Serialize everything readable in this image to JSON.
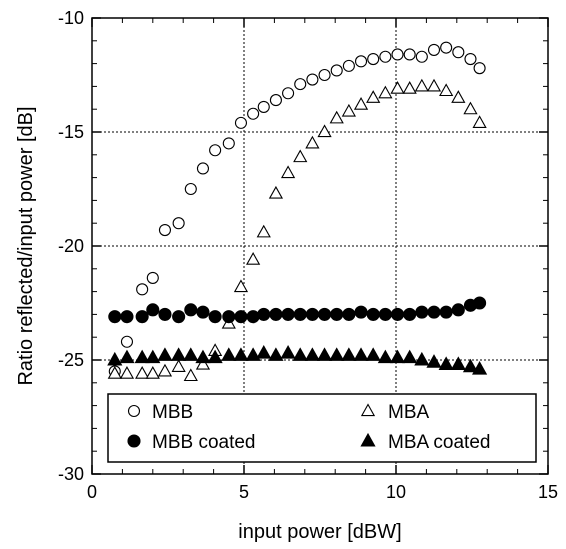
{
  "chart_data": {
    "type": "scatter",
    "xlabel": "input power [dBW]",
    "ylabel": "Ratio reflected/input power [dB]",
    "xlim": [
      0,
      15
    ],
    "ylim": [
      -30,
      -10
    ],
    "xticks": [
      "0",
      "5",
      "10",
      "15"
    ],
    "yticks": [
      "-30",
      "-25",
      "-20",
      "-15",
      "-10"
    ],
    "grid": "dotted, major ticks only",
    "legend_position": "bottom-center",
    "series": [
      {
        "name": "MBB",
        "marker": "open-circle",
        "x": [
          0.75,
          1.15,
          1.65,
          2.0,
          2.4,
          2.85,
          3.25,
          3.65,
          4.05,
          4.5,
          4.9,
          5.3,
          5.65,
          6.05,
          6.45,
          6.85,
          7.25,
          7.65,
          8.05,
          8.45,
          8.85,
          9.25,
          9.65,
          10.05,
          10.45,
          10.85,
          11.25,
          11.65,
          12.05,
          12.45,
          12.75
        ],
        "y": [
          -25.5,
          -24.2,
          -21.9,
          -21.4,
          -19.3,
          -19.0,
          -17.5,
          -16.6,
          -15.8,
          -15.5,
          -14.6,
          -14.2,
          -13.9,
          -13.6,
          -13.3,
          -12.9,
          -12.7,
          -12.5,
          -12.3,
          -12.1,
          -11.9,
          -11.8,
          -11.7,
          -11.6,
          -11.6,
          -11.7,
          -11.4,
          -11.3,
          -11.5,
          -11.8,
          -12.2
        ]
      },
      {
        "name": "MBA",
        "marker": "open-triangle",
        "x": [
          0.75,
          1.15,
          1.65,
          2.0,
          2.4,
          2.85,
          3.25,
          3.65,
          4.05,
          4.5,
          4.9,
          5.3,
          5.65,
          6.05,
          6.45,
          6.85,
          7.25,
          7.65,
          8.05,
          8.45,
          8.85,
          9.25,
          9.65,
          10.05,
          10.45,
          10.85,
          11.25,
          11.65,
          12.05,
          12.45,
          12.75
        ],
        "y": [
          -25.6,
          -25.6,
          -25.6,
          -25.6,
          -25.5,
          -25.3,
          -25.7,
          -25.2,
          -24.6,
          -23.4,
          -21.8,
          -20.6,
          -19.4,
          -17.7,
          -16.8,
          -16.1,
          -15.5,
          -15.0,
          -14.4,
          -14.1,
          -13.8,
          -13.5,
          -13.3,
          -13.1,
          -13.1,
          -13.0,
          -13.0,
          -13.2,
          -13.5,
          -14.0,
          -14.6
        ]
      },
      {
        "name": "MBB coated",
        "marker": "filled-circle",
        "x": [
          0.75,
          1.15,
          1.65,
          2.0,
          2.4,
          2.85,
          3.25,
          3.65,
          4.05,
          4.5,
          4.9,
          5.3,
          5.65,
          6.05,
          6.45,
          6.85,
          7.25,
          7.65,
          8.05,
          8.45,
          8.85,
          9.25,
          9.65,
          10.05,
          10.45,
          10.85,
          11.25,
          11.65,
          12.05,
          12.45,
          12.75
        ],
        "y": [
          -23.1,
          -23.1,
          -23.1,
          -22.8,
          -23.0,
          -23.1,
          -22.8,
          -22.9,
          -23.1,
          -23.1,
          -23.1,
          -23.1,
          -23.0,
          -23.0,
          -23.0,
          -23.0,
          -23.0,
          -23.0,
          -23.0,
          -23.0,
          -22.9,
          -23.0,
          -23.0,
          -23.0,
          -23.0,
          -22.9,
          -22.9,
          -22.9,
          -22.8,
          -22.6,
          -22.5
        ]
      },
      {
        "name": "MBA coated",
        "marker": "filled-triangle",
        "x": [
          0.75,
          1.15,
          1.65,
          2.0,
          2.4,
          2.85,
          3.25,
          3.65,
          4.05,
          4.5,
          4.9,
          5.3,
          5.65,
          6.05,
          6.45,
          6.85,
          7.25,
          7.65,
          8.05,
          8.45,
          8.85,
          9.25,
          9.65,
          10.05,
          10.45,
          10.85,
          11.25,
          11.65,
          12.05,
          12.45,
          12.75
        ],
        "y": [
          -25.0,
          -24.9,
          -24.9,
          -24.9,
          -24.8,
          -24.8,
          -24.8,
          -24.9,
          -24.9,
          -24.8,
          -24.8,
          -24.8,
          -24.7,
          -24.8,
          -24.7,
          -24.8,
          -24.8,
          -24.8,
          -24.8,
          -24.8,
          -24.8,
          -24.8,
          -24.9,
          -24.9,
          -24.9,
          -25.0,
          -25.1,
          -25.2,
          -25.2,
          -25.3,
          -25.4
        ]
      }
    ]
  },
  "colors": {
    "ink": "#000000",
    "grid": "#000000",
    "background": "#ffffff"
  }
}
